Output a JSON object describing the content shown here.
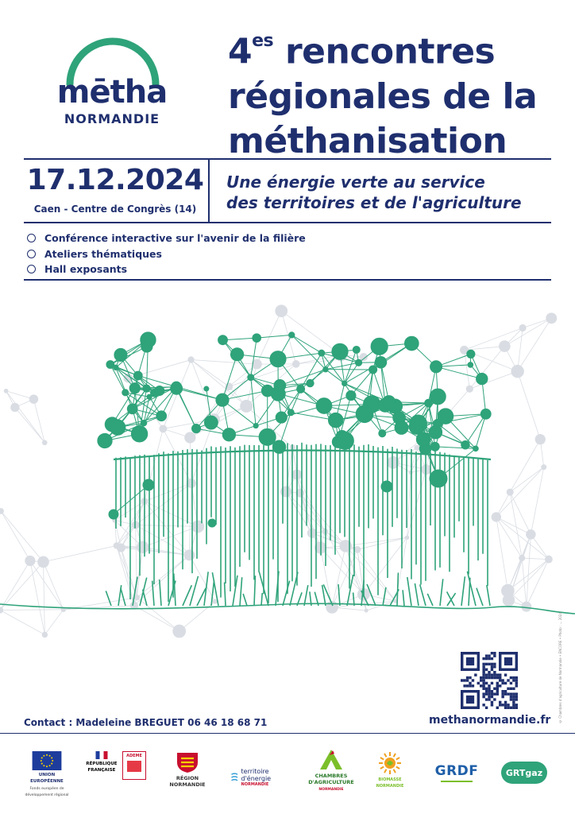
{
  "logo": {
    "word": "mētha",
    "sub": "NORMANDIE"
  },
  "title": {
    "edition": "4",
    "edition_suffix": "es",
    "line1_rest": " rencontres",
    "line2": "régionales de la",
    "line3": "méthanisation"
  },
  "event": {
    "date": "17.12.2024",
    "venue": "Caen - Centre de Congrès (14)"
  },
  "tagline": {
    "line1": "Une énergie verte au service",
    "line2": "des territoires et de l'agriculture"
  },
  "program": [
    "Conférence interactive sur l'avenir de la filière",
    "Ateliers thématiques",
    "Hall exposants"
  ],
  "contact": "Contact : Madeleine BREGUET 06 46 18 68 71",
  "website": "methanormandie.fr",
  "credit": "© Chambres d'agriculture de Normandie • ENCORE • Photo : ... 2024",
  "sponsors": {
    "eu": {
      "label": "UNION EUROPÉENNE",
      "sublabel": "Fonds européen de développement régional"
    },
    "rf": {
      "label": "RÉPUBLIQUE FRANÇAISE",
      "badge": "ADEME"
    },
    "region": {
      "label": "RÉGION NORMANDIE"
    },
    "te": {
      "label": "territoire d'énergie",
      "sublabel": "NORMANDIE"
    },
    "chambres": {
      "label": "CHAMBRES D'AGRICULTURE",
      "sublabel": "NORMANDIE"
    },
    "biomasse": {
      "label": "BIOMASSE NORMANDIE"
    },
    "grdf": {
      "label": "GRDF"
    },
    "grtgaz": {
      "label": "GRTgaz"
    }
  },
  "colors": {
    "navy": "#1f2f6e",
    "green": "#2fa37a",
    "grey": "#d9dde3",
    "red": "#c8102e"
  }
}
